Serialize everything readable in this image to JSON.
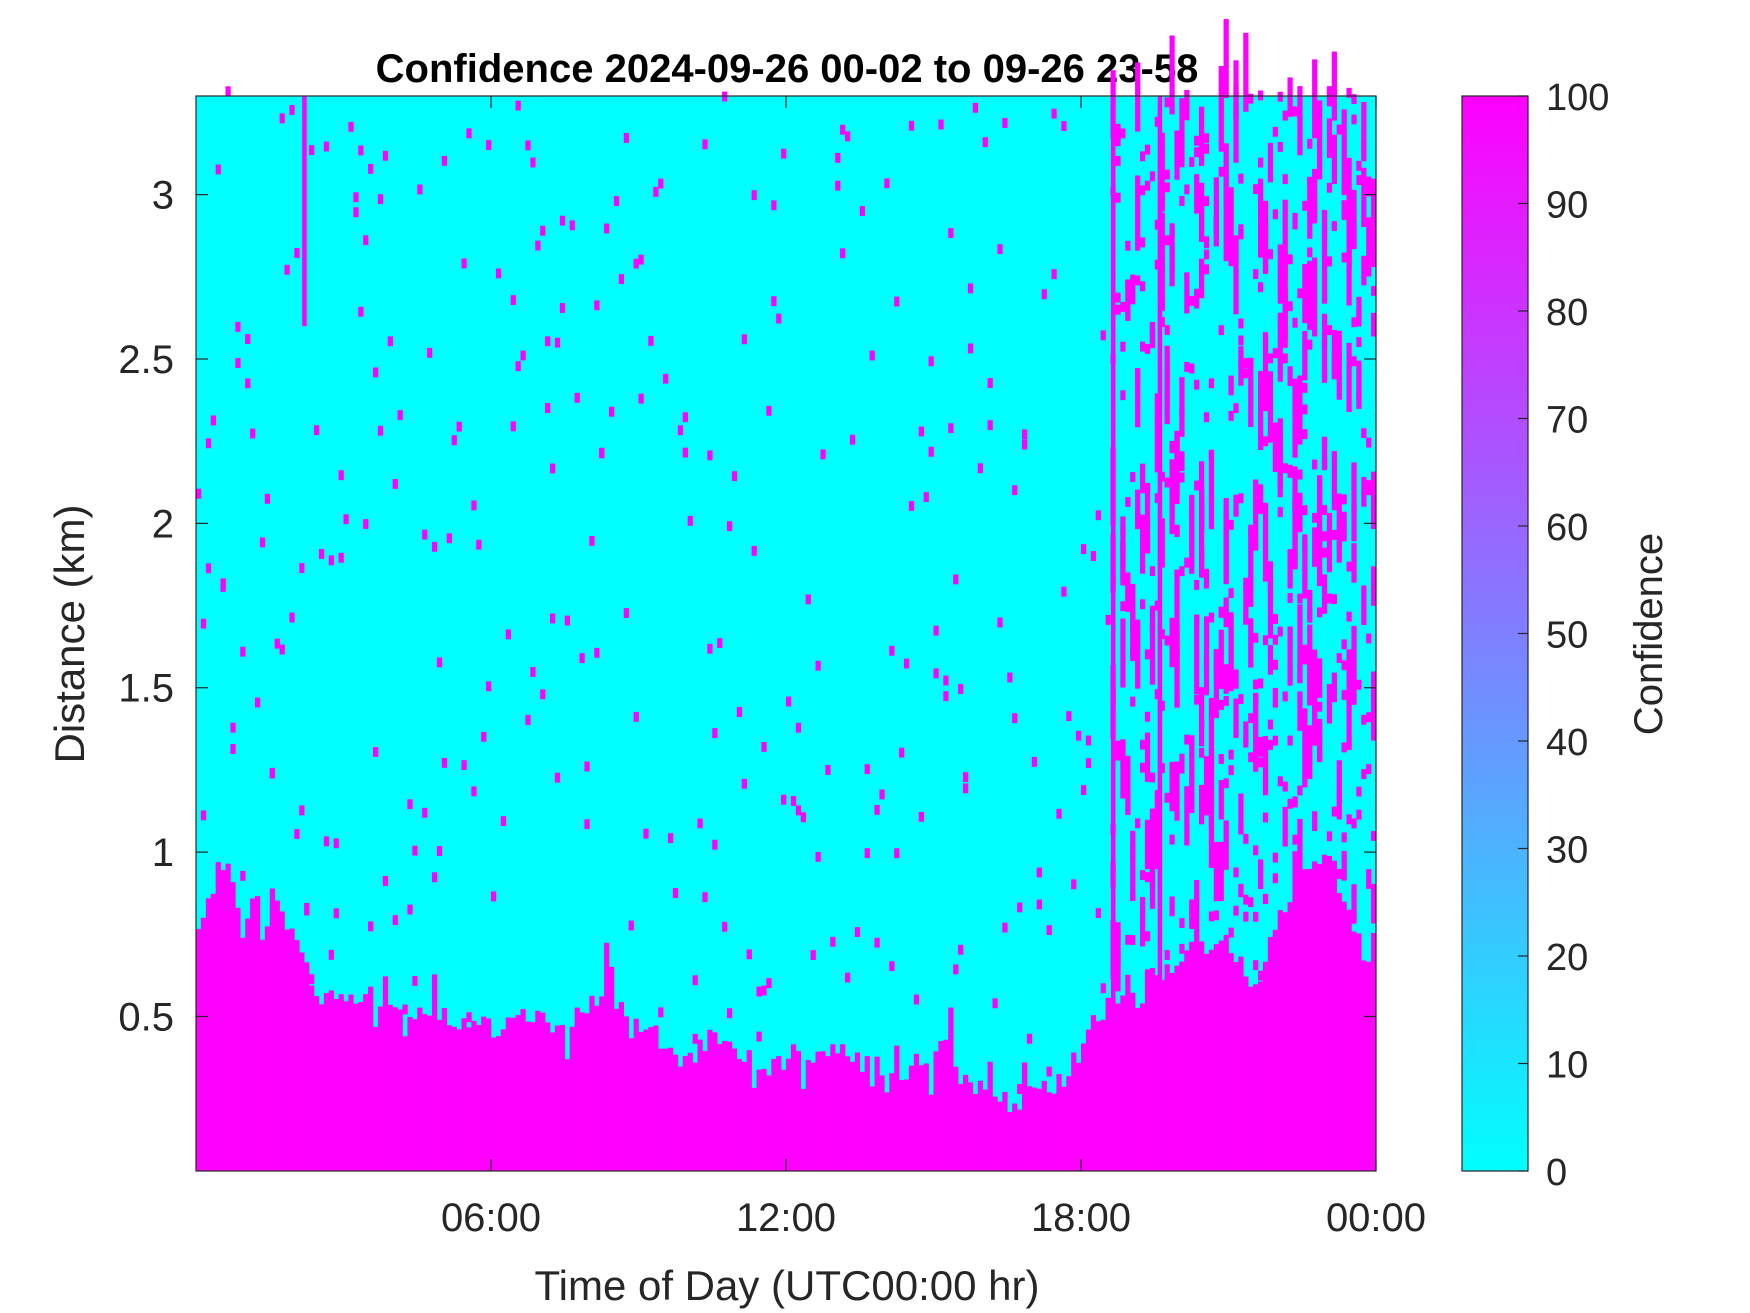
{
  "chart_data": {
    "type": "heatmap",
    "title": "Confidence 2024-09-26 00-02 to 09-26 23-58",
    "xlabel": "Time of Day (UTC00:00 hr)",
    "ylabel": "Distance (km)",
    "colorbar_label": "Confidence",
    "x_range_hours": [
      0,
      24
    ],
    "y_range_km": [
      0.03,
      3.3
    ],
    "c_range": [
      0,
      100
    ],
    "x_ticks": [
      {
        "value": 6,
        "label": "06:00"
      },
      {
        "value": 12,
        "label": "12:00"
      },
      {
        "value": 18,
        "label": "18:00"
      },
      {
        "value": 24,
        "label": "00:00"
      }
    ],
    "y_ticks": [
      {
        "value": 0.5,
        "label": "0.5"
      },
      {
        "value": 1,
        "label": "1"
      },
      {
        "value": 1.5,
        "label": "1.5"
      },
      {
        "value": 2,
        "label": "2"
      },
      {
        "value": 2.5,
        "label": "2.5"
      },
      {
        "value": 3,
        "label": "3"
      }
    ],
    "c_ticks": [
      {
        "value": 0,
        "label": "0"
      },
      {
        "value": 10,
        "label": "10"
      },
      {
        "value": 20,
        "label": "20"
      },
      {
        "value": 30,
        "label": "30"
      },
      {
        "value": 40,
        "label": "40"
      },
      {
        "value": 50,
        "label": "50"
      },
      {
        "value": 60,
        "label": "60"
      },
      {
        "value": 70,
        "label": "70"
      },
      {
        "value": 80,
        "label": "80"
      },
      {
        "value": 90,
        "label": "90"
      },
      {
        "value": 100,
        "label": "100"
      }
    ],
    "colormap": {
      "low": "#00ffff",
      "high": "#ff00ff"
    },
    "time_step_hours": 0.1,
    "range_step_km": 0.03,
    "high_confidence_layer_top_km": [
      [
        0.0,
        0.72
      ],
      [
        0.2,
        0.8
      ],
      [
        0.4,
        0.92
      ],
      [
        0.6,
        0.98
      ],
      [
        0.8,
        0.86
      ],
      [
        1.0,
        0.72
      ],
      [
        1.2,
        0.95
      ],
      [
        1.4,
        0.7
      ],
      [
        1.6,
        0.95
      ],
      [
        1.8,
        0.76
      ],
      [
        2.0,
        0.75
      ],
      [
        2.2,
        0.68
      ],
      [
        2.4,
        0.58
      ],
      [
        2.6,
        0.55
      ],
      [
        2.8,
        0.56
      ],
      [
        3.0,
        0.54
      ],
      [
        3.5,
        0.56
      ],
      [
        4.0,
        0.52
      ],
      [
        4.5,
        0.5
      ],
      [
        5.0,
        0.5
      ],
      [
        5.5,
        0.48
      ],
      [
        6.0,
        0.46
      ],
      [
        6.5,
        0.5
      ],
      [
        7.0,
        0.5
      ],
      [
        7.5,
        0.46
      ],
      [
        8.0,
        0.54
      ],
      [
        8.5,
        0.55
      ],
      [
        9.0,
        0.48
      ],
      [
        9.5,
        0.42
      ],
      [
        10.0,
        0.36
      ],
      [
        10.5,
        0.45
      ],
      [
        11.0,
        0.42
      ],
      [
        11.5,
        0.32
      ],
      [
        12.0,
        0.4
      ],
      [
        12.5,
        0.38
      ],
      [
        13.0,
        0.4
      ],
      [
        13.5,
        0.36
      ],
      [
        14.0,
        0.34
      ],
      [
        14.5,
        0.34
      ],
      [
        15.0,
        0.38
      ],
      [
        15.3,
        0.42
      ],
      [
        15.6,
        0.3
      ],
      [
        16.0,
        0.28
      ],
      [
        16.5,
        0.24
      ],
      [
        17.0,
        0.26
      ],
      [
        17.5,
        0.28
      ],
      [
        18.0,
        0.4
      ],
      [
        18.3,
        0.5
      ],
      [
        18.6,
        0.54
      ],
      [
        19.0,
        0.6
      ],
      [
        19.5,
        0.62
      ],
      [
        20.0,
        0.68
      ],
      [
        20.5,
        0.72
      ],
      [
        21.0,
        0.72
      ],
      [
        21.5,
        0.58
      ],
      [
        22.0,
        0.78
      ],
      [
        22.5,
        0.95
      ],
      [
        23.0,
        1.0
      ],
      [
        23.5,
        0.8
      ],
      [
        23.9,
        0.62
      ],
      [
        24.0,
        0.5
      ]
    ],
    "cloud_band_hours": [
      18.6,
      24.0
    ],
    "vertical_streaks": [
      {
        "hour": 2.2,
        "bottom_km": 2.6,
        "top_km": 3.3
      },
      {
        "hour": 18.65,
        "bottom_km": 0.4,
        "top_km": 3.3
      },
      {
        "hour": 19.6,
        "bottom_km": 0.6,
        "top_km": 3.3
      }
    ]
  }
}
